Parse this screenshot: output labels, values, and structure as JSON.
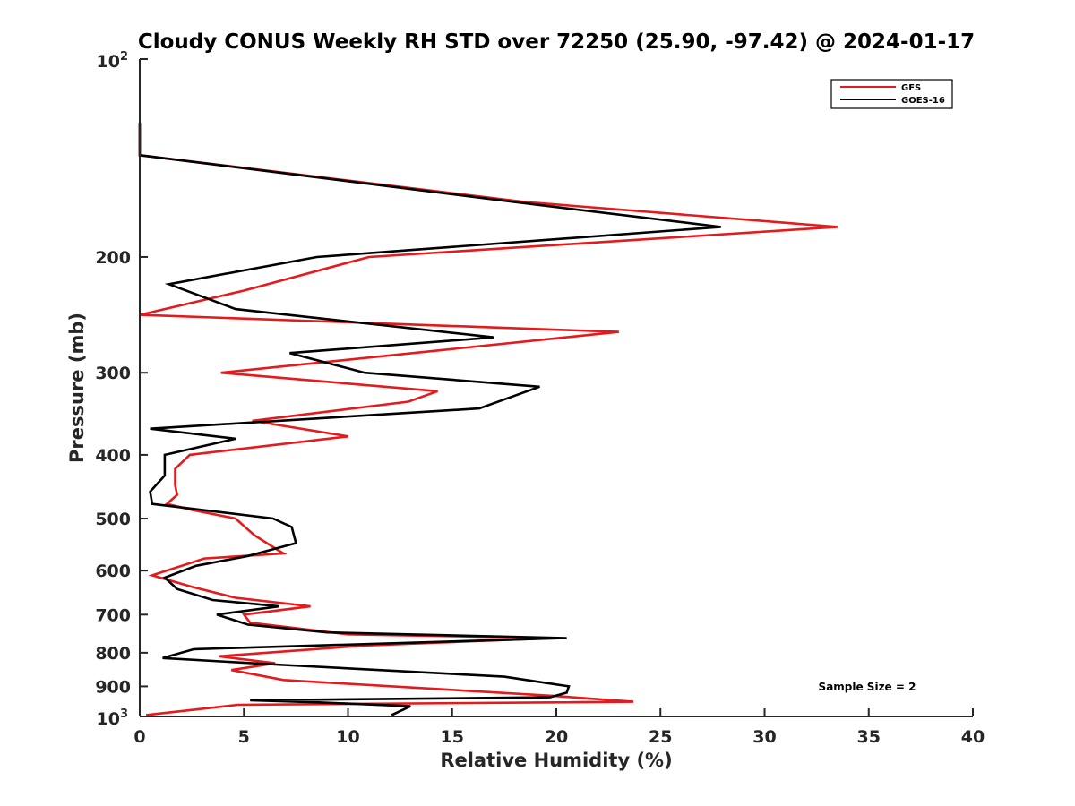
{
  "chart_data": {
    "type": "line",
    "title": "Cloudy CONUS Weekly RH STD over 72250 (25.90, -97.42) @ 2024-01-17",
    "xlabel": "Relative Humidity (%)",
    "ylabel": "Pressure (mb)",
    "xlim": [
      0,
      40
    ],
    "ylim": [
      100,
      1000
    ],
    "y_scale": "log",
    "y_reversed": true,
    "grid": false,
    "legend_position": "top-right",
    "annotation": "Sample Size = 2",
    "x_ticks": [
      "0",
      "5",
      "10",
      "15",
      "20",
      "25",
      "30",
      "35",
      "40"
    ],
    "y_ticks": [
      {
        "value": 100,
        "base": "10",
        "exp": "2"
      },
      {
        "value": 200,
        "label": "200"
      },
      {
        "value": 300,
        "label": "300"
      },
      {
        "value": 400,
        "label": "400"
      },
      {
        "value": 500,
        "label": "500"
      },
      {
        "value": 600,
        "label": "600"
      },
      {
        "value": 700,
        "label": "700"
      },
      {
        "value": 800,
        "label": "800"
      },
      {
        "value": 900,
        "label": "900"
      },
      {
        "value": 1000,
        "base": "10",
        "exp": "3"
      }
    ],
    "series": [
      {
        "name": "GFS",
        "color": "#e41a1c",
        "points": [
          [
            0,
            125
          ],
          [
            0,
            140
          ],
          [
            18.5,
            165
          ],
          [
            33.5,
            180
          ],
          [
            11,
            200
          ],
          [
            5,
            225
          ],
          [
            0,
            245
          ],
          [
            23,
            260
          ],
          [
            3.9,
            300
          ],
          [
            14.3,
            320
          ],
          [
            12.9,
            332
          ],
          [
            5.4,
            355
          ],
          [
            10,
            375
          ],
          [
            2.4,
            400
          ],
          [
            1.7,
            420
          ],
          [
            1.7,
            445
          ],
          [
            1.8,
            460
          ],
          [
            1.3,
            475
          ],
          [
            2.5,
            485
          ],
          [
            4.6,
            500
          ],
          [
            5.5,
            530
          ],
          [
            6.3,
            550
          ],
          [
            6.9,
            565
          ],
          [
            3.1,
            575
          ],
          [
            0.6,
            610
          ],
          [
            2.5,
            635
          ],
          [
            4.6,
            660
          ],
          [
            8.2,
            680
          ],
          [
            5,
            700
          ],
          [
            5.3,
            720
          ],
          [
            10,
            750
          ],
          [
            20,
            760
          ],
          [
            10.8,
            780
          ],
          [
            3.8,
            810
          ],
          [
            6.5,
            830
          ],
          [
            4.4,
            850
          ],
          [
            6.9,
            880
          ],
          [
            19.8,
            930
          ],
          [
            23.7,
            950
          ],
          [
            4.7,
            960
          ],
          [
            0.3,
            995
          ]
        ]
      },
      {
        "name": "GOES-16",
        "color": "#000000",
        "points": [
          [
            0,
            125
          ],
          [
            0,
            140
          ],
          [
            18,
            165
          ],
          [
            27.9,
            180
          ],
          [
            8.5,
            200
          ],
          [
            1.4,
            220
          ],
          [
            4.6,
            240
          ],
          [
            17,
            265
          ],
          [
            7.2,
            280
          ],
          [
            10.8,
            300
          ],
          [
            19.2,
            315
          ],
          [
            16.3,
            340
          ],
          [
            0.5,
            365
          ],
          [
            4.6,
            378
          ],
          [
            1.2,
            400
          ],
          [
            1.2,
            430
          ],
          [
            0.5,
            455
          ],
          [
            0.6,
            475
          ],
          [
            6.4,
            500
          ],
          [
            7.3,
            515
          ],
          [
            7.5,
            545
          ],
          [
            5.2,
            570
          ],
          [
            2.7,
            590
          ],
          [
            1.2,
            615
          ],
          [
            1.8,
            640
          ],
          [
            3.5,
            665
          ],
          [
            6.7,
            680
          ],
          [
            3.7,
            700
          ],
          [
            5.2,
            725
          ],
          [
            9,
            745
          ],
          [
            20.5,
            760
          ],
          [
            2.6,
            790
          ],
          [
            1.1,
            815
          ],
          [
            6.9,
            835
          ],
          [
            17.5,
            870
          ],
          [
            20.6,
            900
          ],
          [
            20.5,
            920
          ],
          [
            19.7,
            935
          ],
          [
            5.3,
            945
          ],
          [
            8.6,
            952
          ],
          [
            13,
            965
          ],
          [
            12.1,
            995
          ]
        ]
      }
    ]
  }
}
